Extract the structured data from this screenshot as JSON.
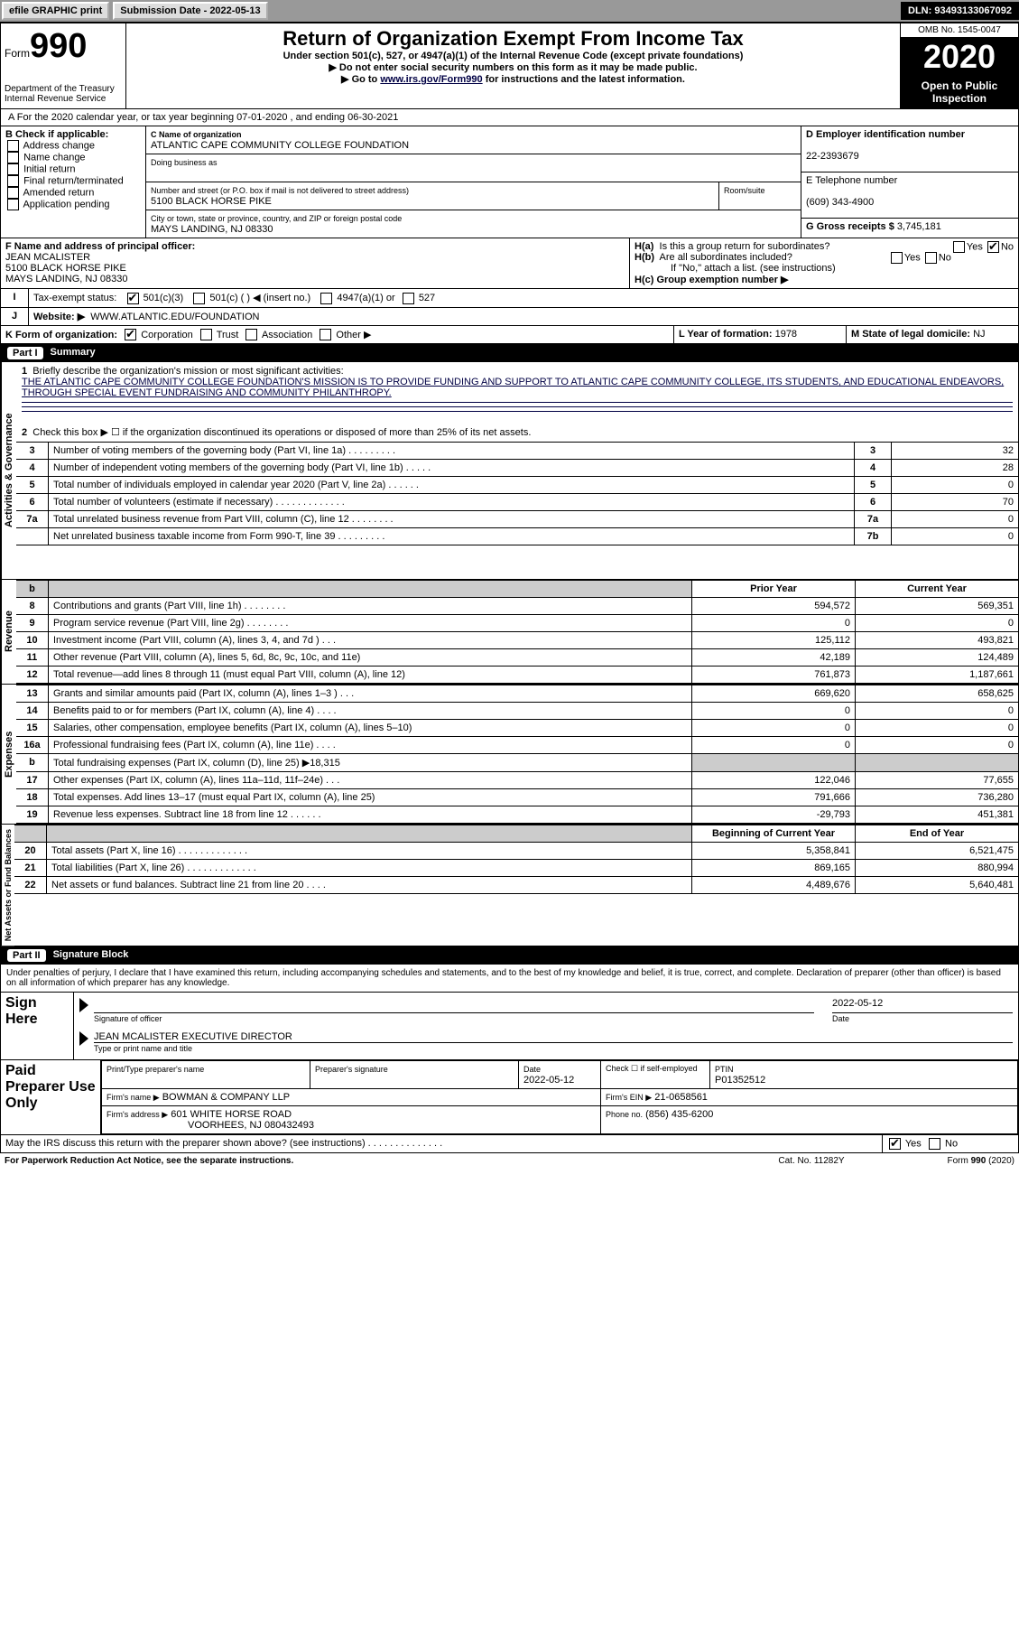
{
  "topbar": {
    "efile": "efile GRAPHIC print",
    "subdate_label": "Submission Date - 2022-05-13",
    "dln": "DLN: 93493133067092"
  },
  "header": {
    "form_word": "Form",
    "form_num": "990",
    "dept": "Department of the Treasury\nInternal Revenue Service",
    "title": "Return of Organization Exempt From Income Tax",
    "subtitle": "Under section 501(c), 527, or 4947(a)(1) of the Internal Revenue Code (except private foundations)",
    "note1": "▶ Do not enter social security numbers on this form as it may be made public.",
    "note2_pre": "▶ Go to ",
    "note2_link": "www.irs.gov/Form990",
    "note2_post": " for instructions and the latest information.",
    "omb": "OMB No. 1545-0047",
    "year": "2020",
    "open": "Open to Public Inspection"
  },
  "periodline": "For the 2020 calendar year, or tax year beginning 07-01-2020    , and ending 06-30-2021",
  "boxB": {
    "label": "B Check if applicable:",
    "opts": [
      "Address change",
      "Name change",
      "Initial return",
      "Final return/terminated",
      "Amended return",
      "Application pending"
    ]
  },
  "boxC": {
    "label": "C Name of organization",
    "name": "ATLANTIC CAPE COMMUNITY COLLEGE FOUNDATION",
    "dba": "Doing business as",
    "addr_label": "Number and street (or P.O. box if mail is not delivered to street address)",
    "room": "Room/suite",
    "addr": "5100 BLACK HORSE PIKE",
    "city_label": "City or town, state or province, country, and ZIP or foreign postal code",
    "city": "MAYS LANDING, NJ  08330"
  },
  "boxD": {
    "label": "D Employer identification number",
    "val": "22-2393679"
  },
  "boxE": {
    "label": "E Telephone number",
    "val": "(609) 343-4900"
  },
  "boxG": {
    "label": "G Gross receipts $",
    "val": "3,745,181"
  },
  "boxF": {
    "label": "F Name and address of principal officer:",
    "name": "JEAN MCALISTER",
    "addr1": "5100 BLACK HORSE PIKE",
    "addr2": "MAYS LANDING, NJ  08330"
  },
  "boxH": {
    "a_label": "Is this a group return for subordinates?",
    "a_pre": "H(a)",
    "b_label": "Are all subordinates included?",
    "b_pre": "H(b)",
    "note": "If \"No,\" attach a list. (see instructions)",
    "c": "H(c)  Group exemption number ▶",
    "yes": "Yes",
    "no": "No"
  },
  "taxexempt": {
    "label": "Tax-exempt status:",
    "o1": "501(c)(3)",
    "o2": "501(c) (  ) ◀ (insert no.)",
    "o3": "4947(a)(1) or",
    "o4": "527"
  },
  "website": {
    "label": "Website: ▶",
    "val": "WWW.ATLANTIC.EDU/FOUNDATION"
  },
  "lineK": {
    "label": "K Form of organization:",
    "corp": "Corporation",
    "trust": "Trust",
    "assoc": "Association",
    "other": "Other ▶"
  },
  "lineL": {
    "label": "L Year of formation:",
    "val": "1978"
  },
  "lineM": {
    "label": "M State of legal domicile:",
    "val": "NJ"
  },
  "part1": {
    "num": "Part I",
    "title": "Summary"
  },
  "summary": {
    "l1_label": "Briefly describe the organization's mission or most significant activities:",
    "l1_text": "THE ATLANTIC CAPE COMMUNITY COLLEGE FOUNDATION'S MISSION IS TO PROVIDE FUNDING AND SUPPORT TO ATLANTIC CAPE COMMUNITY COLLEGE, ITS STUDENTS, AND EDUCATIONAL ENDEAVORS, THROUGH SPECIAL EVENT FUNDRAISING AND COMMUNITY PHILANTHROPY.",
    "l2": "Check this box ▶ ☐  if the organization discontinued its operations or disposed of more than 25% of its net assets.",
    "rows1": [
      {
        "n": "3",
        "t": "Number of voting members of the governing body (Part VI, line 1a)  .    .    .    .    .    .    .    .    .",
        "b": "3",
        "v": "32"
      },
      {
        "n": "4",
        "t": "Number of independent voting members of the governing body (Part VI, line 1b)   .    .    .    .    .",
        "b": "4",
        "v": "28"
      },
      {
        "n": "5",
        "t": "Total number of individuals employed in calendar year 2020 (Part V, line 2a)   .    .    .    .    .    .",
        "b": "5",
        "v": "0"
      },
      {
        "n": "6",
        "t": "Total number of volunteers (estimate if necessary)   .    .    .    .    .    .    .    .    .    .    .    .    .",
        "b": "6",
        "v": "70"
      },
      {
        "n": "7a",
        "t": "Total unrelated business revenue from Part VIII, column (C), line 12   .    .    .    .    .    .    .    .",
        "b": "7a",
        "v": "0"
      },
      {
        "n": "",
        "t": "Net unrelated business taxable income from Form 990-T, line 39   .    .    .    .    .    .    .    .    .",
        "b": "7b",
        "v": "0"
      }
    ],
    "hdr_prior": "Prior Year",
    "hdr_curr": "Current Year",
    "rev": [
      {
        "n": "8",
        "t": "Contributions and grants (Part VIII, line 1h)   .    .    .    .    .    .    .    .",
        "p": "594,572",
        "c": "569,351"
      },
      {
        "n": "9",
        "t": "Program service revenue (Part VIII, line 2g)   .    .    .    .    .    .    .    .",
        "p": "0",
        "c": "0"
      },
      {
        "n": "10",
        "t": "Investment income (Part VIII, column (A), lines 3, 4, and 7d )   .    .    .",
        "p": "125,112",
        "c": "493,821"
      },
      {
        "n": "11",
        "t": "Other revenue (Part VIII, column (A), lines 5, 6d, 8c, 9c, 10c, and 11e)",
        "p": "42,189",
        "c": "124,489"
      },
      {
        "n": "12",
        "t": "Total revenue—add lines 8 through 11 (must equal Part VIII, column (A), line 12)",
        "p": "761,873",
        "c": "1,187,661"
      }
    ],
    "exp": [
      {
        "n": "13",
        "t": "Grants and similar amounts paid (Part IX, column (A), lines 1–3 )   .    .    .",
        "p": "669,620",
        "c": "658,625"
      },
      {
        "n": "14",
        "t": "Benefits paid to or for members (Part IX, column (A), line 4)   .    .    .    .",
        "p": "0",
        "c": "0"
      },
      {
        "n": "15",
        "t": "Salaries, other compensation, employee benefits (Part IX, column (A), lines 5–10)",
        "p": "0",
        "c": "0"
      },
      {
        "n": "16a",
        "t": "Professional fundraising fees (Part IX, column (A), line 11e)   .    .    .    .",
        "p": "0",
        "c": "0"
      },
      {
        "n": "b",
        "t": "Total fundraising expenses (Part IX, column (D), line 25) ▶18,315",
        "p": "",
        "c": "",
        "shade": true
      },
      {
        "n": "17",
        "t": "Other expenses (Part IX, column (A), lines 11a–11d, 11f–24e)   .    .    .",
        "p": "122,046",
        "c": "77,655"
      },
      {
        "n": "18",
        "t": "Total expenses. Add lines 13–17 (must equal Part IX, column (A), line 25)",
        "p": "791,666",
        "c": "736,280"
      },
      {
        "n": "19",
        "t": "Revenue less expenses. Subtract line 18 from line 12  .    .    .    .    .    .",
        "p": "-29,793",
        "c": "451,381"
      }
    ],
    "hdr_beg": "Beginning of Current Year",
    "hdr_end": "End of Year",
    "net": [
      {
        "n": "20",
        "t": "Total assets (Part X, line 16)  .    .    .    .    .    .    .    .    .    .    .    .    .",
        "p": "5,358,841",
        "c": "6,521,475"
      },
      {
        "n": "21",
        "t": "Total liabilities (Part X, line 26) .    .    .    .    .    .    .    .    .    .    .    .    .",
        "p": "869,165",
        "c": "880,994"
      },
      {
        "n": "22",
        "t": "Net assets or fund balances. Subtract line 21 from line 20   .    .    .    .",
        "p": "4,489,676",
        "c": "5,640,481"
      }
    ],
    "side1": "Activities & Governance",
    "side2": "Revenue",
    "side3": "Expenses",
    "side4": "Net Assets or Fund Balances"
  },
  "part2": {
    "num": "Part II",
    "title": "Signature Block"
  },
  "sig": {
    "decl": "Under penalties of perjury, I declare that I have examined this return, including accompanying schedules and statements, and to the best of my knowledge and belief, it is true, correct, and complete. Declaration of preparer (other than officer) is based on all information of which preparer has any knowledge.",
    "sign_here": "Sign Here",
    "sig_officer": "Signature of officer",
    "date_lbl": "Date",
    "date_val": "2022-05-12",
    "officer_name": "JEAN MCALISTER  EXECUTIVE DIRECTOR",
    "officer_sub": "Type or print name and title",
    "paid": "Paid Preparer Use Only",
    "prep_name_lbl": "Print/Type preparer's name",
    "prep_sig_lbl": "Preparer's signature",
    "prep_date_lbl": "Date",
    "prep_date": "2022-05-12",
    "check_if": "Check ☐ if self-employed",
    "ptin_lbl": "PTIN",
    "ptin": "P01352512",
    "firm_name_lbl": "Firm's name    ▶",
    "firm_name": "BOWMAN & COMPANY LLP",
    "firm_ein_lbl": "Firm's EIN ▶",
    "firm_ein": "21-0658561",
    "firm_addr_lbl": "Firm's address ▶",
    "firm_addr1": "601 WHITE HORSE ROAD",
    "firm_addr2": "VOORHEES, NJ  080432493",
    "phone_lbl": "Phone no.",
    "phone": "(856) 435-6200",
    "may_irs": "May the IRS discuss this return with the preparer shown above? (see instructions)   .    .    .    .    .    .    .    .    .    .    .    .    .    .",
    "yes": "Yes",
    "no": "No"
  },
  "footer": {
    "pra": "For Paperwork Reduction Act Notice, see the separate instructions.",
    "cat": "Cat. No. 11282Y",
    "form": "Form 990 (2020)"
  }
}
